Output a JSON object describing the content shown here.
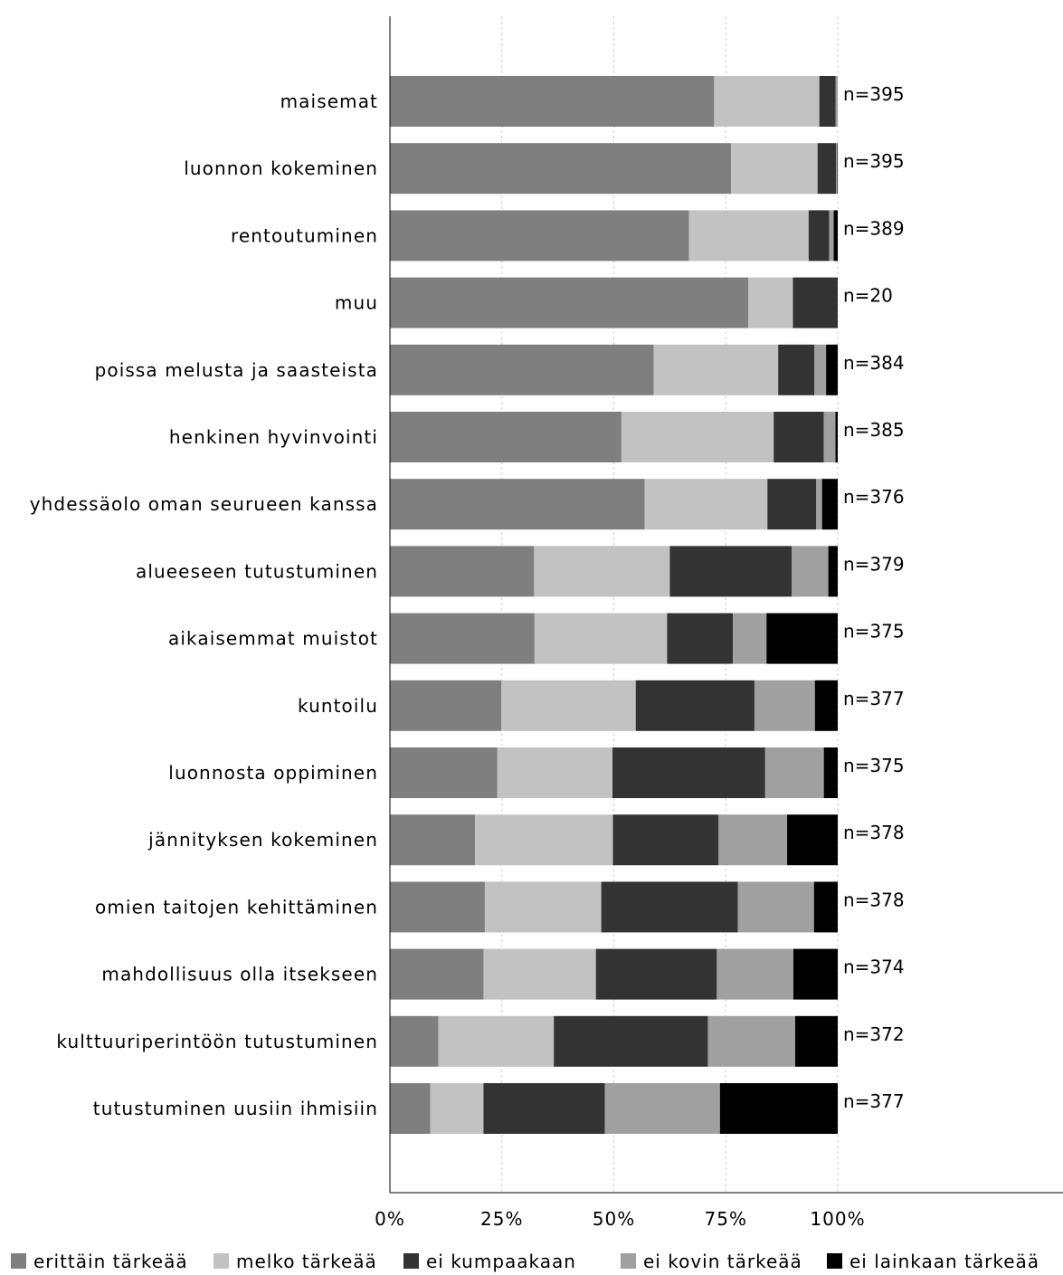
{
  "chart_data": {
    "type": "bar",
    "orientation": "horizontal",
    "stacked": true,
    "percent": true,
    "categories": [
      "maisemat",
      "luonnon kokeminen",
      "rentoutuminen",
      "muu",
      "poissa melusta ja saasteista",
      "henkinen hyvinvointi",
      "yhdessäolo oman seurueen kanssa",
      "alueeseen tutustuminen",
      "aikaisemmat muistot",
      "kuntoilu",
      "luonnosta oppiminen",
      "jännityksen kokeminen",
      "omien taitojen kehittäminen",
      "mahdollisuus olla itsekseen",
      "kulttuuriperintöön tutustuminen",
      "tutustuminen uusiin ihmisiin"
    ],
    "n_labels": [
      "n=395",
      "n=395",
      "n=389",
      "n=20",
      "n=384",
      "n=385",
      "n=376",
      "n=379",
      "n=375",
      "n=377",
      "n=375",
      "n=378",
      "n=378",
      "n=374",
      "n=372",
      "n=377"
    ],
    "series": [
      {
        "name": "erittäin tärkeää",
        "color": "#7f7f7f",
        "values": [
          72.4,
          76.2,
          66.8,
          80.0,
          58.9,
          51.7,
          56.9,
          32.2,
          32.3,
          24.9,
          24.0,
          19.0,
          21.2,
          20.9,
          10.8,
          9.0
        ]
      },
      {
        "name": "melko tärkeää",
        "color": "#c2c2c2",
        "values": [
          23.5,
          19.3,
          26.7,
          10.0,
          27.8,
          34.0,
          27.4,
          30.3,
          29.6,
          30.0,
          25.7,
          30.8,
          26.0,
          25.1,
          25.8,
          11.9
        ]
      },
      {
        "name": "ei kumpaakaan",
        "color": "#333333",
        "values": [
          3.6,
          4.1,
          4.6,
          10.0,
          8.1,
          11.2,
          10.9,
          27.2,
          14.7,
          26.5,
          34.1,
          23.6,
          30.5,
          27.0,
          34.4,
          27.1
        ]
      },
      {
        "name": "ei kovin tärkeää",
        "color": "#a0a0a0",
        "values": [
          0.5,
          0.3,
          1.0,
          0.0,
          2.6,
          2.6,
          1.3,
          8.2,
          7.5,
          13.5,
          13.1,
          15.3,
          17.0,
          17.1,
          19.5,
          25.7
        ]
      },
      {
        "name": "ei lainkaan tärkeää",
        "color": "#000000",
        "values": [
          0.0,
          0.1,
          0.9,
          0.0,
          2.6,
          0.5,
          3.5,
          2.1,
          15.9,
          5.1,
          3.1,
          11.3,
          5.3,
          9.9,
          9.5,
          26.3
        ]
      }
    ],
    "xticks": [
      "0%",
      "25%",
      "50%",
      "75%",
      "100%"
    ],
    "xlim": [
      0,
      100
    ],
    "grid": true,
    "legend_position": "bottom",
    "title": "",
    "xlabel": "",
    "ylabel": ""
  }
}
